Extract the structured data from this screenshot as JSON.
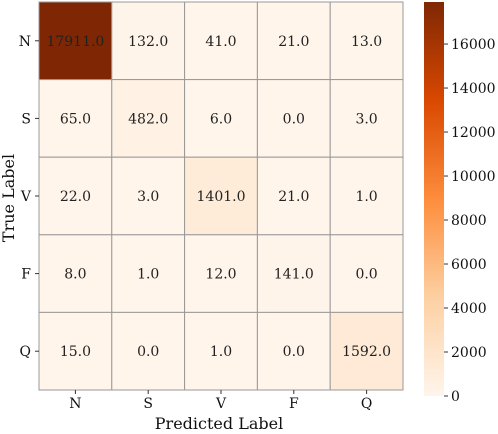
{
  "chart_data": {
    "type": "heatmap",
    "title": "",
    "xlabel": "Predicted Label",
    "ylabel": "True Label",
    "x_categories": [
      "N",
      "S",
      "V",
      "F",
      "Q"
    ],
    "y_categories": [
      "N",
      "S",
      "V",
      "F",
      "Q"
    ],
    "values": [
      [
        17911.0,
        132.0,
        41.0,
        21.0,
        13.0
      ],
      [
        65.0,
        482.0,
        6.0,
        0.0,
        3.0
      ],
      [
        22.0,
        3.0,
        1401.0,
        21.0,
        1.0
      ],
      [
        8.0,
        1.0,
        12.0,
        141.0,
        0.0
      ],
      [
        15.0,
        0.0,
        1.0,
        0.0,
        1592.0
      ]
    ],
    "value_format": "one-decimal",
    "colorbar": {
      "colormap": "Oranges",
      "range": [
        0,
        17911
      ],
      "ticks": [
        0,
        2000,
        4000,
        6000,
        8000,
        10000,
        12000,
        14000,
        16000
      ]
    },
    "colors": {
      "low": "#fff5eb",
      "mid": "#fd8d3c",
      "high": "#7f2704",
      "cell_border": "#999999"
    }
  }
}
